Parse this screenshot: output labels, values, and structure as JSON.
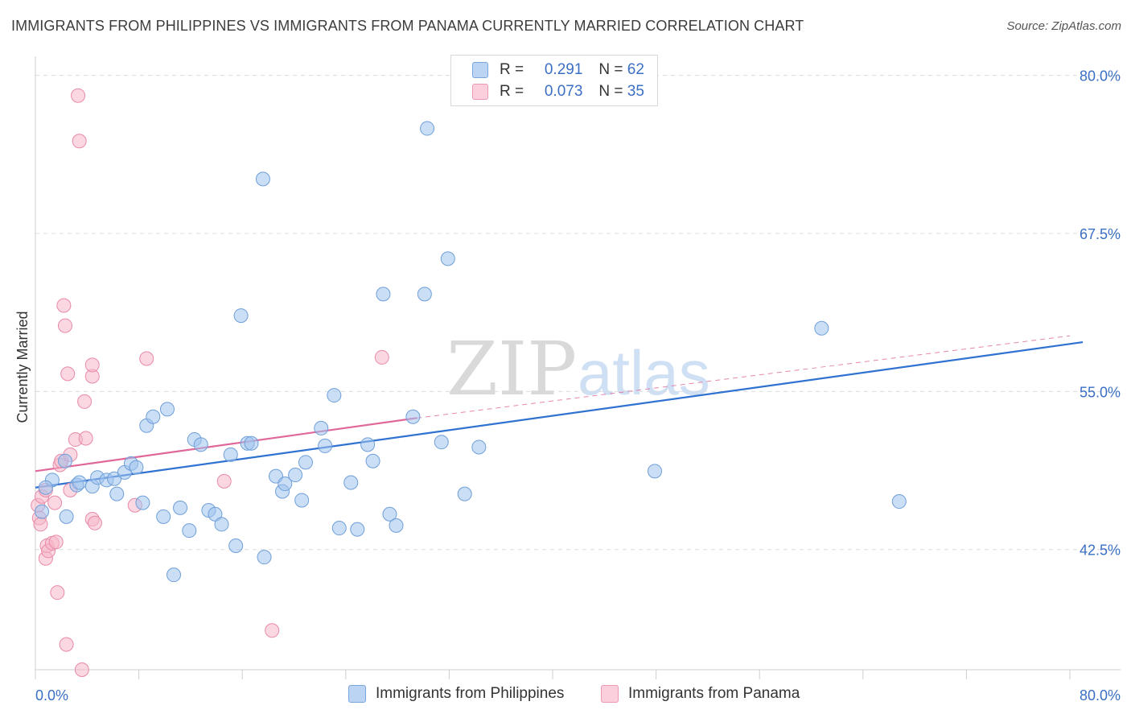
{
  "title": "IMMIGRANTS FROM PHILIPPINES VS IMMIGRANTS FROM PANAMA CURRENTLY MARRIED CORRELATION CHART",
  "source": "Source: ZipAtlas.com",
  "colors": {
    "blue": "#9fc3ef",
    "blue_stroke": "#6f9fd8",
    "blue_line": "#2f72d0",
    "pink": "#f6b7c9",
    "pink_stroke": "#e98aa8",
    "pink_line": "#e0679a",
    "axis_text": "#3a6fc4"
  },
  "legend": {
    "r_label": "R =",
    "n_label": "N =",
    "rows": [
      {
        "r": "0.291",
        "n": "62"
      },
      {
        "r": "0.073",
        "n": "35"
      }
    ]
  },
  "watermark": {
    "zip": "ZIP",
    "atlas": "atlas"
  },
  "chart_data": {
    "type": "scatter",
    "title": "IMMIGRANTS FROM PHILIPPINES VS IMMIGRANTS FROM PANAMA CURRENTLY MARRIED CORRELATION CHART",
    "xlabel": "",
    "ylabel": "Currently Married",
    "xlim": [
      0,
      80
    ],
    "ylim": [
      33,
      81.5
    ],
    "x_tick_labels": [
      "0.0%",
      "80.0%"
    ],
    "y_ticks": [
      42.5,
      55.0,
      67.5,
      80.0
    ],
    "y_tick_labels": [
      "42.5%",
      "55.0%",
      "67.5%",
      "80.0%"
    ],
    "series": [
      {
        "name": "Immigrants from Philippines",
        "trend": {
          "x": [
            0,
            81
          ],
          "y": [
            47.4,
            58.9
          ]
        },
        "points": [
          [
            0.5,
            45.5
          ],
          [
            1.3,
            48.0
          ],
          [
            2.3,
            49.5
          ],
          [
            2.4,
            45.1
          ],
          [
            3.2,
            47.6
          ],
          [
            3.4,
            47.8
          ],
          [
            4.4,
            47.5
          ],
          [
            4.8,
            48.2
          ],
          [
            5.5,
            48.0
          ],
          [
            6.1,
            48.1
          ],
          [
            6.3,
            46.9
          ],
          [
            6.9,
            48.6
          ],
          [
            7.4,
            49.3
          ],
          [
            7.8,
            49.0
          ],
          [
            8.3,
            46.2
          ],
          [
            8.6,
            52.3
          ],
          [
            9.1,
            53.0
          ],
          [
            9.9,
            45.1
          ],
          [
            10.2,
            53.6
          ],
          [
            10.7,
            40.5
          ],
          [
            11.2,
            45.8
          ],
          [
            11.9,
            44.0
          ],
          [
            12.3,
            51.2
          ],
          [
            12.8,
            50.8
          ],
          [
            13.4,
            45.6
          ],
          [
            13.9,
            45.3
          ],
          [
            14.4,
            44.5
          ],
          [
            15.1,
            50.0
          ],
          [
            15.5,
            42.8
          ],
          [
            15.9,
            61.0
          ],
          [
            16.4,
            50.9
          ],
          [
            16.7,
            50.9
          ],
          [
            17.7,
            41.9
          ],
          [
            17.6,
            71.8
          ],
          [
            18.6,
            48.3
          ],
          [
            19.1,
            47.1
          ],
          [
            19.3,
            47.7
          ],
          [
            20.1,
            48.4
          ],
          [
            20.6,
            46.4
          ],
          [
            20.9,
            49.4
          ],
          [
            22.1,
            52.1
          ],
          [
            22.4,
            50.7
          ],
          [
            23.1,
            54.7
          ],
          [
            23.5,
            44.2
          ],
          [
            24.4,
            47.8
          ],
          [
            24.9,
            44.1
          ],
          [
            25.7,
            50.8
          ],
          [
            26.1,
            49.5
          ],
          [
            26.9,
            62.7
          ],
          [
            27.4,
            45.3
          ],
          [
            27.9,
            44.4
          ],
          [
            29.2,
            53.0
          ],
          [
            30.1,
            62.7
          ],
          [
            30.3,
            75.8
          ],
          [
            31.4,
            51.0
          ],
          [
            31.9,
            65.5
          ],
          [
            33.2,
            46.9
          ],
          [
            34.3,
            50.6
          ],
          [
            47.9,
            48.7
          ],
          [
            60.8,
            60.0
          ],
          [
            66.8,
            46.3
          ],
          [
            0.8,
            47.4
          ]
        ]
      },
      {
        "name": "Immigrants from Panama",
        "trend": {
          "x": [
            0,
            29.5
          ],
          "y": [
            48.7,
            52.9
          ]
        },
        "trend_ext": {
          "x": [
            29.5,
            80
          ],
          "y": [
            52.9,
            59.4
          ]
        },
        "points": [
          [
            0.2,
            46.0
          ],
          [
            0.3,
            45.0
          ],
          [
            0.4,
            44.5
          ],
          [
            0.5,
            46.7
          ],
          [
            0.8,
            47.2
          ],
          [
            0.8,
            41.8
          ],
          [
            0.9,
            42.8
          ],
          [
            1.0,
            42.4
          ],
          [
            1.3,
            43.0
          ],
          [
            1.6,
            43.1
          ],
          [
            1.5,
            46.2
          ],
          [
            1.7,
            39.1
          ],
          [
            1.9,
            49.2
          ],
          [
            2.0,
            49.5
          ],
          [
            2.2,
            61.8
          ],
          [
            2.3,
            60.2
          ],
          [
            2.4,
            35.0
          ],
          [
            2.5,
            56.4
          ],
          [
            2.7,
            47.2
          ],
          [
            2.7,
            50.0
          ],
          [
            3.1,
            51.2
          ],
          [
            3.3,
            78.4
          ],
          [
            3.4,
            74.8
          ],
          [
            3.6,
            33.0
          ],
          [
            3.8,
            54.2
          ],
          [
            3.9,
            51.3
          ],
          [
            4.4,
            56.2
          ],
          [
            4.4,
            57.1
          ],
          [
            4.4,
            44.9
          ],
          [
            4.6,
            44.6
          ],
          [
            7.7,
            46.0
          ],
          [
            8.6,
            57.6
          ],
          [
            14.6,
            47.9
          ],
          [
            18.3,
            36.1
          ],
          [
            26.8,
            57.7
          ]
        ]
      }
    ]
  },
  "bottom_legend": [
    "Immigrants from Philippines",
    "Immigrants from Panama"
  ]
}
